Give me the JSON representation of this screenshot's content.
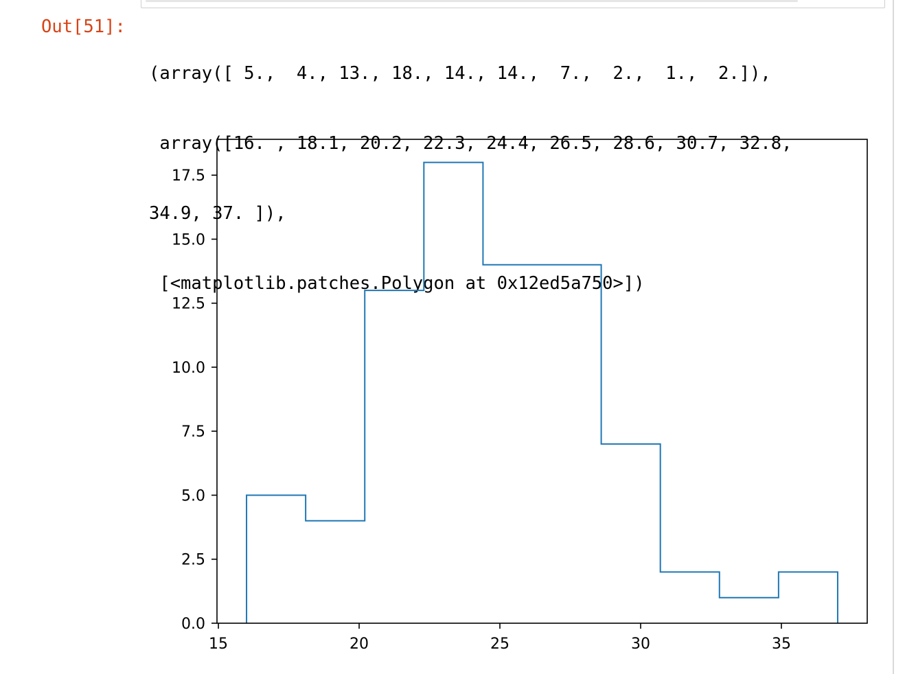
{
  "cell": {
    "prompt": "Out[51]:",
    "output_lines": [
      "(array([ 5.,  4., 13., 18., 14., 14.,  7.,  2.,  1.,  2.]),",
      " array([16. , 18.1, 20.2, 22.3, 24.4, 26.5, 28.6, 30.7, 32.8,",
      "34.9, 37. ]),",
      " [<matplotlib.patches.Polygon at 0x12ed5a750>])"
    ]
  },
  "chart_data": {
    "type": "histogram-step",
    "title": "",
    "xlabel": "",
    "ylabel": "",
    "bin_edges": [
      16.0,
      18.1,
      20.2,
      22.3,
      24.4,
      26.5,
      28.6,
      30.7,
      32.8,
      34.9,
      37.0
    ],
    "counts": [
      5,
      4,
      13,
      18,
      14,
      14,
      7,
      2,
      1,
      2
    ],
    "xlim": [
      14.95,
      38.05
    ],
    "ylim": [
      0,
      18.9
    ],
    "xticks": [
      15,
      20,
      25,
      30,
      35
    ],
    "xtick_labels": [
      "15",
      "20",
      "25",
      "30",
      "35"
    ],
    "yticks": [
      0,
      2.5,
      5,
      7.5,
      10,
      12.5,
      15,
      17.5
    ],
    "ytick_labels": [
      "0.0",
      "2.5",
      "5.0",
      "7.5",
      "10.0",
      "12.5",
      "15.0",
      "17.5"
    ],
    "line_color": "#1f77b4",
    "grid": false
  }
}
